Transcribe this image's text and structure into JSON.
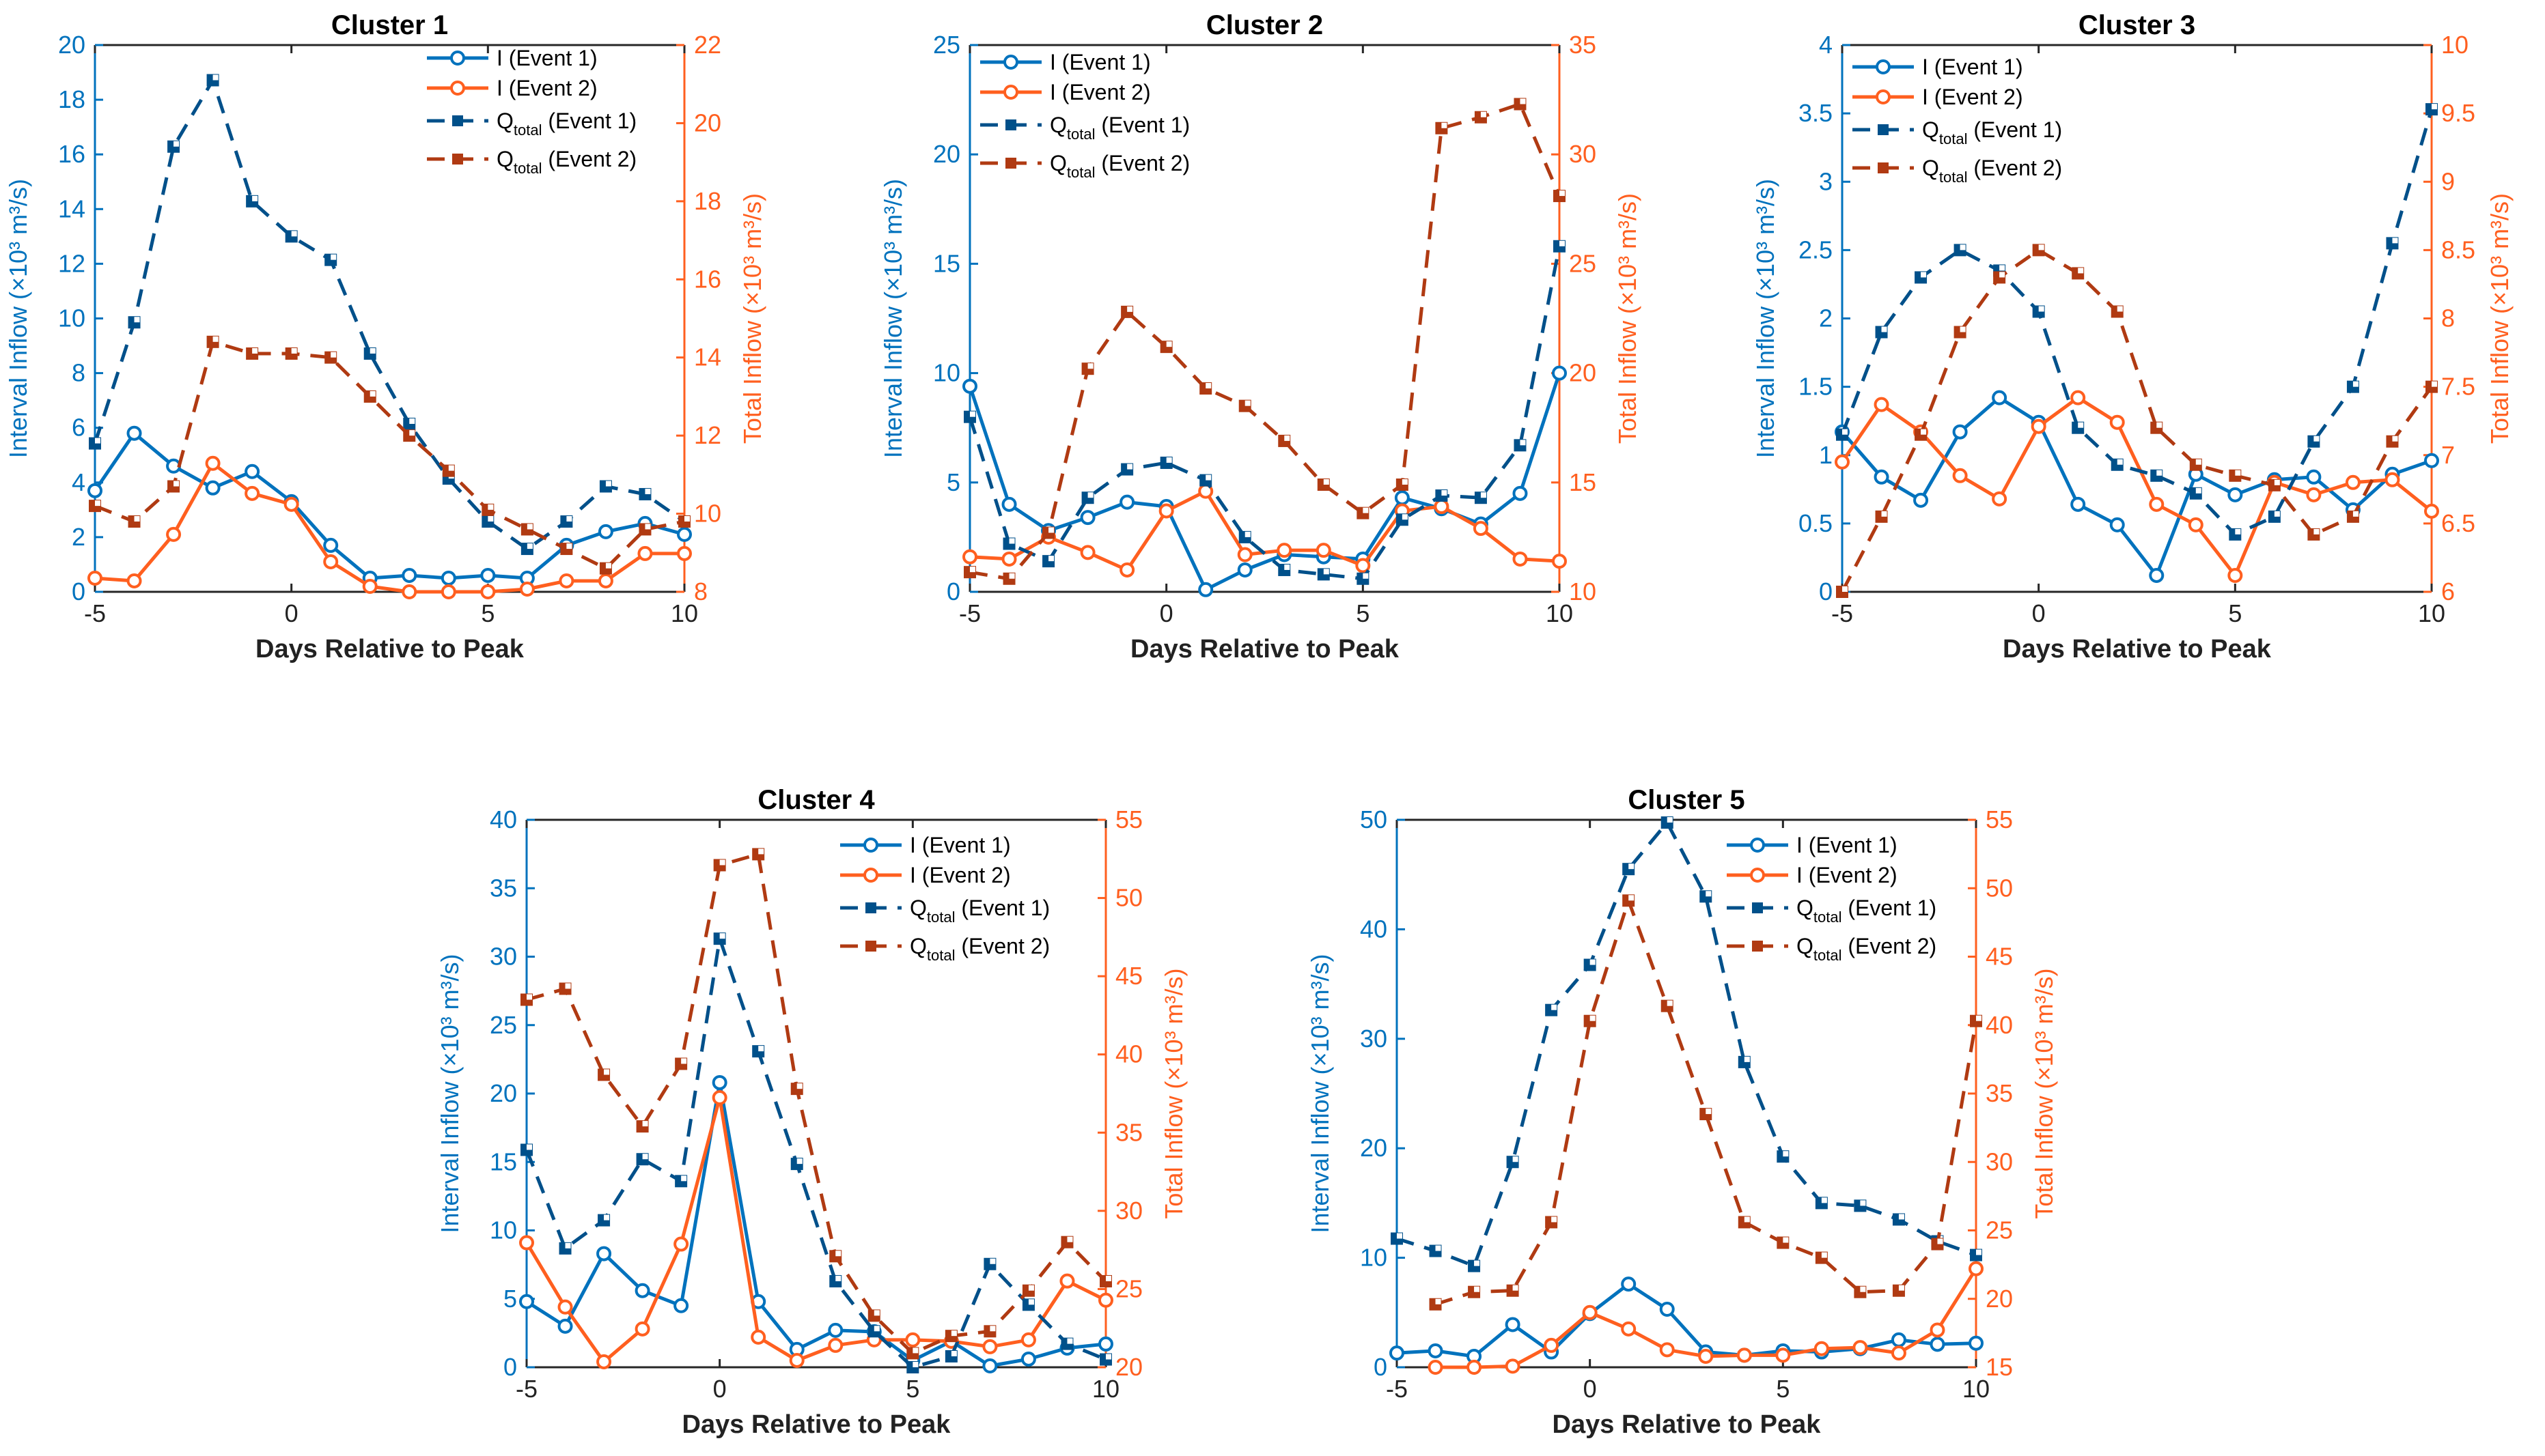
{
  "colors": {
    "blue": "#0072BD",
    "orange": "#FF5F1F",
    "blue_dark": "#00508A",
    "orange_dark": "#B03A12",
    "axis": "#262626"
  },
  "legend": {
    "i1": "I (Event 1)",
    "i2": "I (Event 2)",
    "q_main": "Q",
    "q_sub": "total",
    "q1_suffix": " (Event 1)",
    "q2_suffix": " (Event 2)"
  },
  "chart_data": [
    {
      "type": "line",
      "title": "Cluster 1",
      "xlabel": "Days Relative to Peak",
      "ylabel": "Interval Inflow (×10³ m³/s)",
      "y2label": "Total Inflow (×10³ m³/s)",
      "xlim": [
        -5,
        10
      ],
      "xticks": [
        -5,
        0,
        5,
        10
      ],
      "ylim": [
        0,
        20
      ],
      "yticks": [
        0,
        2,
        4,
        6,
        8,
        10,
        12,
        14,
        16,
        18,
        20
      ],
      "y2lim": [
        8,
        22
      ],
      "y2ticks": [
        8,
        10,
        12,
        14,
        16,
        18,
        20,
        22
      ],
      "legend_position": "top-right",
      "x": [
        -5,
        -4,
        -3,
        -2,
        -1,
        0,
        1,
        2,
        3,
        4,
        5,
        6,
        7,
        8,
        9,
        10
      ],
      "series": [
        {
          "name": "I (Event 1)",
          "axis": "left",
          "values": [
            3.7,
            5.8,
            4.6,
            3.8,
            4.4,
            3.3,
            1.7,
            0.5,
            0.6,
            0.5,
            0.6,
            0.5,
            1.7,
            2.2,
            2.5,
            2.1
          ]
        },
        {
          "name": "I (Event 2)",
          "axis": "left",
          "values": [
            0.5,
            0.4,
            2.1,
            4.7,
            3.6,
            3.2,
            1.1,
            0.2,
            0.0,
            0.0,
            0.0,
            0.1,
            0.4,
            0.4,
            1.4,
            1.4
          ]
        },
        {
          "name": "Qtotal (Event 1)",
          "axis": "right",
          "values": [
            11.8,
            14.9,
            19.4,
            21.1,
            18.0,
            17.1,
            16.5,
            14.1,
            12.3,
            10.9,
            9.8,
            9.1,
            9.8,
            10.7,
            10.5,
            9.8
          ]
        },
        {
          "name": "Qtotal (Event 2)",
          "axis": "right",
          "values": [
            10.2,
            9.8,
            10.7,
            14.4,
            14.1,
            14.1,
            14.0,
            13.0,
            12.0,
            11.1,
            10.1,
            9.6,
            9.1,
            8.6,
            9.6,
            9.8
          ]
        }
      ]
    },
    {
      "type": "line",
      "title": "Cluster 2",
      "xlabel": "Days Relative to Peak",
      "ylabel": "Interval Inflow (×10³ m³/s)",
      "y2label": "Total Inflow (×10³ m³/s)",
      "xlim": [
        -5,
        10
      ],
      "xticks": [
        -5,
        0,
        5,
        10
      ],
      "ylim": [
        0,
        25
      ],
      "yticks": [
        0,
        5,
        10,
        15,
        20,
        25
      ],
      "y2lim": [
        10,
        35
      ],
      "y2ticks": [
        10,
        15,
        20,
        25,
        30,
        35
      ],
      "legend_position": "top-left",
      "x": [
        -5,
        -4,
        -3,
        -2,
        -1,
        0,
        1,
        2,
        3,
        4,
        5,
        6,
        7,
        8,
        9,
        10
      ],
      "series": [
        {
          "name": "I (Event 1)",
          "axis": "left",
          "values": [
            9.4,
            4.0,
            2.8,
            3.4,
            4.1,
            3.9,
            0.1,
            1.0,
            1.7,
            1.6,
            1.5,
            4.3,
            3.8,
            3.1,
            4.5,
            10.0
          ]
        },
        {
          "name": "I (Event 2)",
          "axis": "left",
          "values": [
            1.6,
            1.5,
            2.5,
            1.8,
            1.0,
            3.7,
            4.6,
            1.7,
            1.9,
            1.9,
            1.2,
            3.7,
            3.9,
            2.9,
            1.5,
            1.4
          ]
        },
        {
          "name": "Qtotal (Event 1)",
          "axis": "right",
          "values": [
            18.0,
            12.2,
            11.4,
            14.3,
            15.6,
            15.9,
            15.1,
            12.5,
            11.0,
            10.8,
            10.6,
            13.3,
            14.4,
            14.3,
            16.7,
            25.8
          ]
        },
        {
          "name": "Qtotal (Event 2)",
          "axis": "right",
          "values": [
            10.9,
            10.6,
            12.7,
            20.2,
            22.8,
            21.2,
            19.3,
            18.5,
            16.9,
            14.9,
            13.6,
            14.9,
            31.2,
            31.7,
            32.3,
            28.1
          ]
        }
      ]
    },
    {
      "type": "line",
      "title": "Cluster 3",
      "xlabel": "Days Relative to Peak",
      "ylabel": "Interval Inflow (×10³ m³/s)",
      "y2label": "Total Inflow (×10³ m³/s)",
      "xlim": [
        -5,
        10
      ],
      "xticks": [
        -5,
        0,
        5,
        10
      ],
      "ylim": [
        0,
        4
      ],
      "yticks": [
        0,
        0.5,
        1,
        1.5,
        2,
        2.5,
        3,
        3.5,
        4
      ],
      "y2lim": [
        6,
        10
      ],
      "y2ticks": [
        6,
        6.5,
        7,
        7.5,
        8,
        8.5,
        9,
        9.5,
        10
      ],
      "legend_position": "top-left",
      "x": [
        -5,
        -4,
        -3,
        -2,
        -1,
        0,
        1,
        2,
        3,
        4,
        5,
        6,
        7,
        8,
        9,
        10
      ],
      "series": [
        {
          "name": "I (Event 1)",
          "axis": "left",
          "values": [
            1.17,
            0.84,
            0.67,
            1.17,
            1.42,
            1.24,
            0.64,
            0.49,
            0.12,
            0.86,
            0.71,
            0.82,
            0.84,
            0.6,
            0.86,
            0.96
          ]
        },
        {
          "name": "I (Event 2)",
          "axis": "left",
          "values": [
            0.95,
            1.37,
            1.17,
            0.85,
            0.68,
            1.21,
            1.42,
            1.24,
            0.64,
            0.49,
            0.12,
            0.8,
            0.71,
            0.8,
            0.82,
            0.59
          ]
        },
        {
          "name": "Qtotal (Event 1)",
          "axis": "right",
          "values": [
            7.15,
            7.9,
            8.3,
            8.5,
            8.35,
            8.05,
            7.2,
            6.93,
            6.85,
            6.72,
            6.42,
            6.55,
            7.1,
            7.5,
            8.55,
            9.53
          ]
        },
        {
          "name": "Qtotal (Event 2)",
          "axis": "right",
          "values": [
            6.0,
            6.55,
            7.15,
            7.9,
            8.3,
            8.5,
            8.33,
            8.05,
            7.2,
            6.93,
            6.85,
            6.78,
            6.42,
            6.55,
            7.1,
            7.5
          ]
        }
      ]
    },
    {
      "type": "line",
      "title": "Cluster 4",
      "xlabel": "Days Relative to Peak",
      "ylabel": "Interval Inflow (×10³ m³/s)",
      "y2label": "Total Inflow (×10³ m³/s)",
      "xlim": [
        -5,
        10
      ],
      "xticks": [
        -5,
        0,
        5,
        10
      ],
      "ylim": [
        0,
        40
      ],
      "yticks": [
        0,
        5,
        10,
        15,
        20,
        25,
        30,
        35,
        40
      ],
      "y2lim": [
        20,
        55
      ],
      "y2ticks": [
        20,
        25,
        30,
        35,
        40,
        45,
        50,
        55
      ],
      "legend_position": "top-right",
      "x": [
        -5,
        -4,
        -3,
        -2,
        -1,
        0,
        1,
        2,
        3,
        4,
        5,
        6,
        7,
        8,
        9,
        10
      ],
      "series": [
        {
          "name": "I (Event 1)",
          "axis": "left",
          "values": [
            4.8,
            3.0,
            8.3,
            5.6,
            4.5,
            20.8,
            4.8,
            1.3,
            2.7,
            2.6,
            0.5,
            1.9,
            0.1,
            0.6,
            1.4,
            1.7
          ]
        },
        {
          "name": "I (Event 2)",
          "axis": "left",
          "values": [
            9.1,
            4.4,
            0.4,
            2.8,
            9.0,
            19.7,
            2.2,
            0.5,
            1.6,
            2.0,
            2.0,
            1.9,
            1.5,
            2.0,
            6.3,
            4.9
          ]
        },
        {
          "name": "Qtotal (Event 1)",
          "axis": "right",
          "values": [
            33.9,
            27.6,
            29.4,
            33.3,
            31.9,
            47.4,
            40.2,
            33.0,
            25.5,
            22.3,
            20.0,
            20.7,
            26.6,
            24.0,
            21.5,
            20.5
          ]
        },
        {
          "name": "Qtotal (Event 2)",
          "axis": "right",
          "values": [
            43.5,
            44.2,
            38.7,
            35.4,
            39.4,
            52.1,
            52.8,
            37.8,
            27.1,
            23.3,
            20.9,
            22.0,
            22.3,
            24.9,
            28.0,
            25.5
          ]
        }
      ]
    },
    {
      "type": "line",
      "title": "Cluster 5",
      "xlabel": "Days Relative to Peak",
      "ylabel": "Interval Inflow (×10³ m³/s)",
      "y2label": "Total Inflow (×10³ m³/s)",
      "xlim": [
        -5,
        10
      ],
      "xticks": [
        -5,
        0,
        5,
        10
      ],
      "ylim": [
        0,
        50
      ],
      "yticks": [
        0,
        10,
        20,
        30,
        40,
        50
      ],
      "y2lim": [
        15,
        55
      ],
      "y2ticks": [
        15,
        20,
        25,
        30,
        35,
        40,
        45,
        50,
        55
      ],
      "legend_position": "top-right",
      "x": [
        -5,
        -4,
        -3,
        -2,
        -1,
        0,
        1,
        2,
        3,
        4,
        5,
        6,
        7,
        8,
        9,
        10
      ],
      "series": [
        {
          "name": "I (Event 1)",
          "axis": "left",
          "values": [
            1.3,
            1.5,
            1.0,
            3.9,
            1.4,
            4.9,
            7.6,
            5.3,
            1.4,
            1.1,
            1.5,
            1.4,
            1.7,
            2.5,
            2.1,
            2.2
          ]
        },
        {
          "name": "I (Event 2)",
          "axis": "left",
          "values": [
            null,
            0.0,
            0.0,
            0.1,
            2.0,
            5.0,
            3.5,
            1.6,
            1.0,
            1.1,
            1.1,
            1.7,
            1.8,
            1.3,
            3.4,
            9.0
          ]
        },
        {
          "name": "Qtotal (Event 1)",
          "axis": "right",
          "values": [
            24.4,
            23.5,
            22.4,
            30.0,
            41.1,
            44.4,
            51.4,
            54.8,
            49.4,
            37.3,
            30.4,
            27.0,
            26.8,
            25.8,
            24.2,
            23.2
          ]
        },
        {
          "name": "Qtotal (Event 2)",
          "axis": "right",
          "values": [
            null,
            19.6,
            20.5,
            20.6,
            25.6,
            40.3,
            49.1,
            41.4,
            33.5,
            25.6,
            24.1,
            23.0,
            20.5,
            20.6,
            24.0,
            40.3
          ]
        }
      ]
    }
  ]
}
